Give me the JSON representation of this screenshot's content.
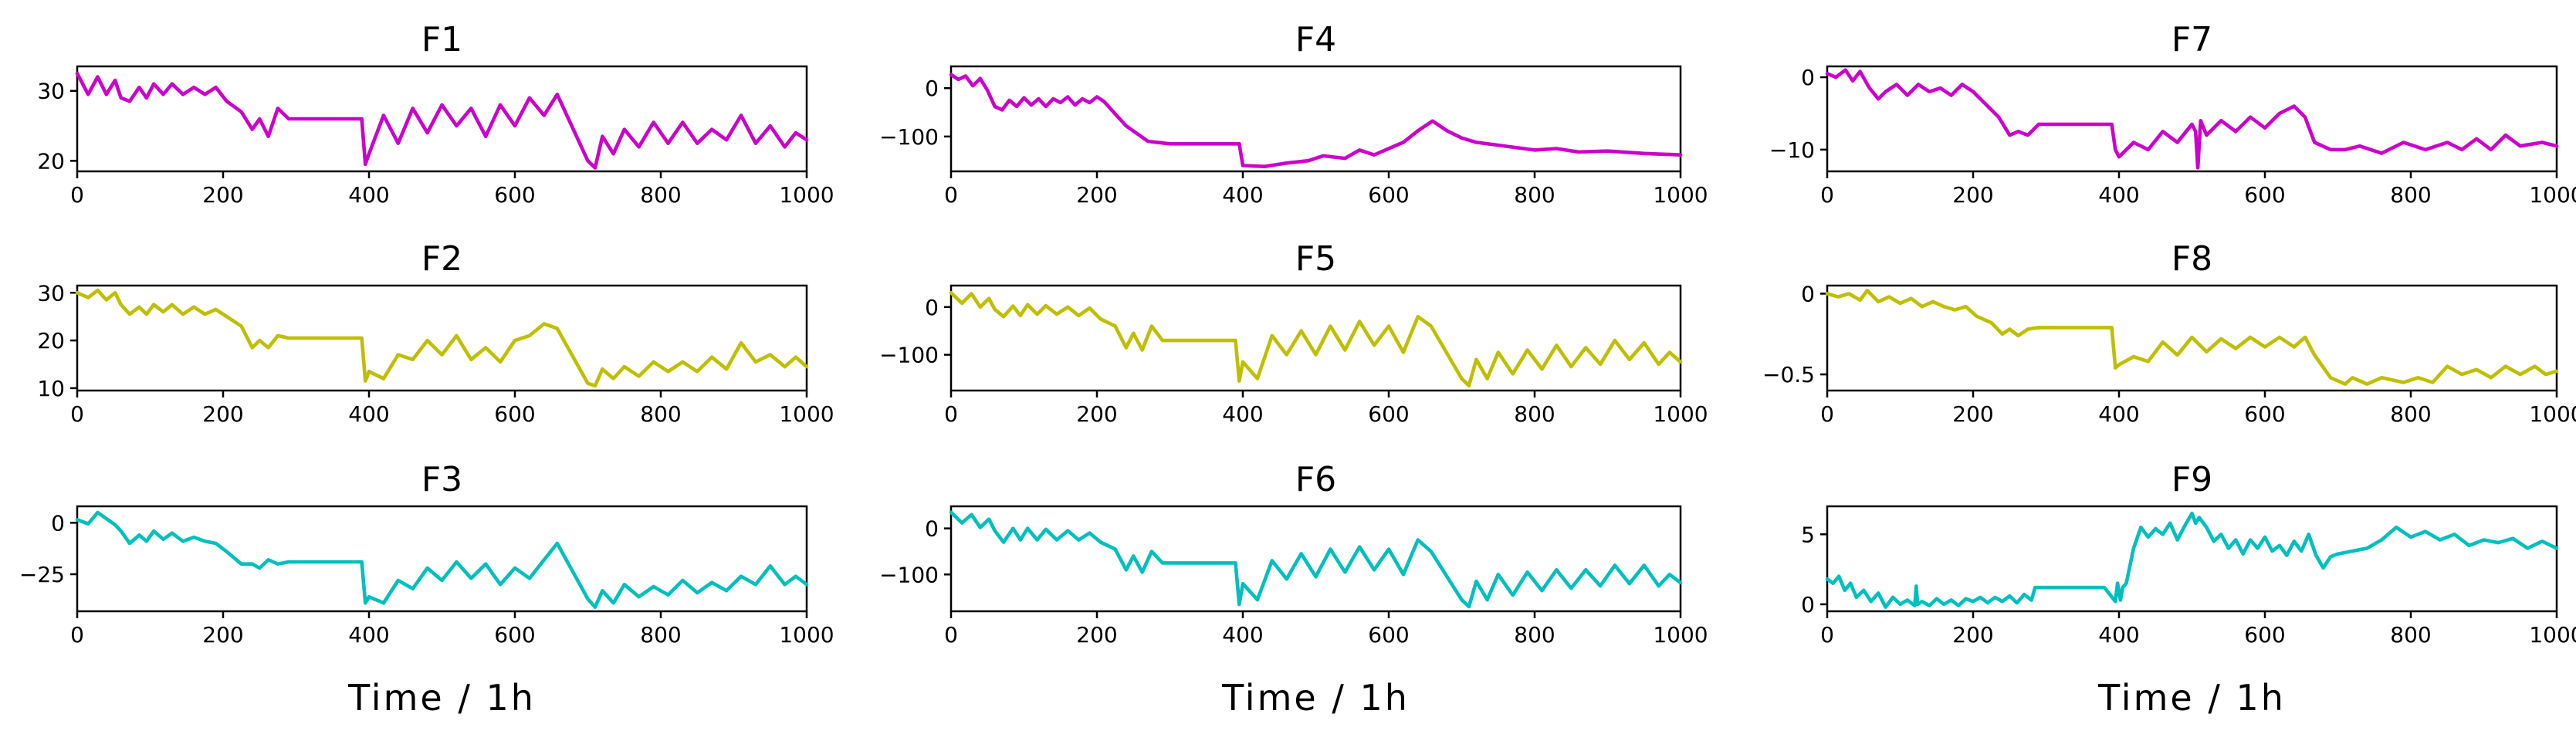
{
  "figure": {
    "xlabel": "Time / 1h"
  },
  "chart_data": [
    {
      "type": "line",
      "title": "F1",
      "color": "#cc00cc",
      "xlim": [
        0,
        1000
      ],
      "ylim": [
        18.5,
        33.5
      ],
      "xticks": [
        0,
        200,
        400,
        600,
        800,
        1000
      ],
      "yticks": [
        20,
        30
      ],
      "x": [
        0,
        15,
        28,
        40,
        52,
        60,
        72,
        85,
        95,
        105,
        118,
        130,
        145,
        160,
        175,
        190,
        205,
        225,
        240,
        250,
        262,
        275,
        290,
        300,
        330,
        390,
        395,
        400,
        420,
        440,
        460,
        480,
        500,
        520,
        540,
        560,
        580,
        600,
        620,
        640,
        658,
        700,
        710,
        720,
        735,
        750,
        770,
        790,
        810,
        830,
        850,
        870,
        890,
        910,
        930,
        950,
        970,
        985,
        1000
      ],
      "y": [
        32.5,
        29.5,
        32,
        29.5,
        31.5,
        29,
        28.5,
        30.5,
        29,
        31,
        29.5,
        31,
        29.5,
        30.5,
        29.5,
        30.5,
        28.5,
        27,
        24.5,
        26,
        23.5,
        27.5,
        26,
        26,
        26,
        26,
        19.5,
        21,
        26.5,
        22.5,
        27.5,
        24,
        28,
        25,
        27.5,
        23.5,
        28,
        25,
        29,
        26.5,
        29.5,
        20,
        19,
        23.5,
        21,
        24.5,
        22,
        25.5,
        22.5,
        25.5,
        22.5,
        24.5,
        23,
        26.5,
        22.5,
        25,
        22,
        24,
        23
      ]
    },
    {
      "type": "line",
      "title": "F2",
      "color": "#bfbf00",
      "xlim": [
        0,
        1000
      ],
      "ylim": [
        9.5,
        31.5
      ],
      "xticks": [
        0,
        200,
        400,
        600,
        800,
        1000
      ],
      "yticks": [
        10,
        20,
        30
      ],
      "x": [
        0,
        15,
        28,
        40,
        52,
        60,
        72,
        85,
        95,
        105,
        118,
        130,
        145,
        160,
        175,
        190,
        205,
        225,
        240,
        250,
        262,
        275,
        290,
        300,
        330,
        390,
        395,
        400,
        420,
        440,
        460,
        480,
        500,
        520,
        540,
        560,
        580,
        600,
        620,
        640,
        658,
        700,
        710,
        720,
        735,
        750,
        770,
        790,
        810,
        830,
        850,
        870,
        890,
        910,
        930,
        950,
        970,
        985,
        1000
      ],
      "y": [
        30,
        29,
        30.5,
        28.5,
        30,
        27.5,
        25.5,
        27,
        25.5,
        27.5,
        26,
        27.5,
        25.5,
        27,
        25.5,
        26.5,
        25,
        23,
        18.5,
        20,
        18.5,
        21,
        20.5,
        20.5,
        20.5,
        20.5,
        11.5,
        13.5,
        12,
        17,
        16,
        20,
        17,
        21,
        16,
        18.5,
        15.5,
        20,
        21,
        23.5,
        22.5,
        11,
        10.5,
        14,
        12,
        14.5,
        12.5,
        15.5,
        13.5,
        15.5,
        13.5,
        16.5,
        14,
        19.5,
        15.5,
        17,
        14.5,
        16.5,
        14.5
      ]
    },
    {
      "type": "line",
      "title": "F3",
      "color": "#00bfbf",
      "xlim": [
        0,
        1000
      ],
      "ylim": [
        -43,
        8
      ],
      "xticks": [
        0,
        200,
        400,
        600,
        800,
        1000
      ],
      "yticks": [
        -25,
        0
      ],
      "x": [
        0,
        15,
        28,
        40,
        52,
        60,
        72,
        85,
        95,
        105,
        118,
        130,
        145,
        160,
        175,
        190,
        205,
        225,
        240,
        250,
        262,
        275,
        290,
        300,
        330,
        390,
        395,
        400,
        420,
        440,
        460,
        480,
        500,
        520,
        540,
        560,
        580,
        600,
        620,
        640,
        658,
        700,
        710,
        720,
        735,
        750,
        770,
        790,
        810,
        830,
        850,
        870,
        890,
        910,
        930,
        950,
        970,
        985,
        1000
      ],
      "y": [
        1.5,
        -0.5,
        5,
        2,
        -1,
        -4,
        -10,
        -6,
        -9,
        -4,
        -8,
        -5,
        -9,
        -7,
        -9,
        -10,
        -14,
        -20,
        -20,
        -22,
        -18,
        -20,
        -19,
        -19,
        -19,
        -19,
        -39,
        -36,
        -39,
        -28,
        -32,
        -22,
        -28,
        -19,
        -27,
        -20,
        -30,
        -22,
        -27,
        -18,
        -10,
        -37,
        -41,
        -33,
        -39,
        -30,
        -36,
        -31,
        -35,
        -28,
        -34,
        -29,
        -33,
        -26,
        -30,
        -21,
        -30,
        -26,
        -30
      ]
    },
    {
      "type": "line",
      "title": "F4",
      "color": "#cc00cc",
      "xlim": [
        0,
        1000
      ],
      "ylim": [
        -172,
        45
      ],
      "xticks": [
        0,
        200,
        400,
        600,
        800,
        1000
      ],
      "yticks": [
        -100,
        0
      ],
      "x": [
        0,
        10,
        20,
        30,
        40,
        50,
        60,
        70,
        80,
        90,
        100,
        110,
        120,
        130,
        140,
        150,
        160,
        170,
        180,
        190,
        200,
        210,
        220,
        240,
        270,
        300,
        395,
        400,
        430,
        460,
        490,
        510,
        540,
        560,
        580,
        600,
        620,
        640,
        660,
        680,
        700,
        720,
        760,
        800,
        830,
        860,
        900,
        950,
        1000
      ],
      "y": [
        28,
        18,
        25,
        5,
        20,
        -5,
        -38,
        -45,
        -25,
        -38,
        -20,
        -35,
        -22,
        -38,
        -22,
        -30,
        -18,
        -35,
        -22,
        -30,
        -18,
        -28,
        -45,
        -78,
        -110,
        -115,
        -115,
        -160,
        -162,
        -155,
        -150,
        -140,
        -145,
        -128,
        -138,
        -125,
        -112,
        -88,
        -68,
        -88,
        -103,
        -112,
        -120,
        -128,
        -125,
        -132,
        -130,
        -135,
        -138
      ]
    },
    {
      "type": "line",
      "title": "F5",
      "color": "#bfbf00",
      "xlim": [
        0,
        1000
      ],
      "ylim": [
        -175,
        45
      ],
      "xticks": [
        0,
        200,
        400,
        600,
        800,
        1000
      ],
      "yticks": [
        -100,
        0
      ],
      "x": [
        0,
        15,
        28,
        40,
        52,
        60,
        72,
        85,
        95,
        105,
        118,
        130,
        145,
        160,
        175,
        190,
        205,
        225,
        240,
        250,
        262,
        275,
        290,
        300,
        330,
        390,
        395,
        400,
        420,
        440,
        460,
        480,
        500,
        520,
        540,
        560,
        580,
        600,
        620,
        640,
        658,
        700,
        710,
        720,
        735,
        750,
        770,
        790,
        810,
        830,
        850,
        870,
        890,
        910,
        930,
        950,
        970,
        985,
        1000
      ],
      "y": [
        30,
        8,
        28,
        0,
        18,
        -5,
        -20,
        2,
        -18,
        5,
        -15,
        3,
        -15,
        0,
        -18,
        -2,
        -25,
        -40,
        -85,
        -55,
        -90,
        -40,
        -70,
        -70,
        -70,
        -70,
        -155,
        -115,
        -150,
        -60,
        -100,
        -50,
        -100,
        -40,
        -90,
        -30,
        -80,
        -40,
        -95,
        -20,
        -40,
        -150,
        -165,
        -110,
        -150,
        -95,
        -140,
        -90,
        -130,
        -80,
        -125,
        -85,
        -120,
        -70,
        -110,
        -75,
        -120,
        -95,
        -115
      ]
    },
    {
      "type": "line",
      "title": "F6",
      "color": "#00bfbf",
      "xlim": [
        0,
        1000
      ],
      "ylim": [
        -180,
        48
      ],
      "xticks": [
        0,
        200,
        400,
        600,
        800,
        1000
      ],
      "yticks": [
        -100,
        0
      ],
      "x": [
        0,
        15,
        28,
        40,
        52,
        60,
        72,
        85,
        95,
        105,
        118,
        130,
        145,
        160,
        175,
        190,
        205,
        225,
        240,
        250,
        262,
        275,
        290,
        300,
        330,
        390,
        395,
        400,
        420,
        440,
        460,
        480,
        500,
        520,
        540,
        560,
        580,
        600,
        620,
        640,
        658,
        700,
        710,
        720,
        735,
        750,
        770,
        790,
        810,
        830,
        850,
        870,
        890,
        910,
        930,
        950,
        970,
        985,
        1000
      ],
      "y": [
        35,
        12,
        30,
        2,
        20,
        -5,
        -30,
        0,
        -25,
        0,
        -25,
        -2,
        -25,
        -5,
        -25,
        -10,
        -30,
        -45,
        -90,
        -60,
        -95,
        -50,
        -75,
        -75,
        -75,
        -75,
        -165,
        -120,
        -155,
        -70,
        -110,
        -55,
        -105,
        -45,
        -95,
        -40,
        -90,
        -45,
        -100,
        -25,
        -50,
        -155,
        -170,
        -115,
        -155,
        -100,
        -145,
        -95,
        -135,
        -90,
        -130,
        -90,
        -125,
        -80,
        -120,
        -80,
        -125,
        -100,
        -118
      ]
    },
    {
      "type": "line",
      "title": "F7",
      "color": "#cc00cc",
      "xlim": [
        0,
        1000
      ],
      "ylim": [
        -13,
        1.5
      ],
      "xticks": [
        0,
        200,
        400,
        600,
        800,
        1000
      ],
      "yticks": [
        -10,
        0
      ],
      "x": [
        0,
        12,
        25,
        35,
        45,
        58,
        70,
        80,
        95,
        110,
        125,
        140,
        155,
        170,
        185,
        200,
        215,
        235,
        250,
        262,
        275,
        290,
        300,
        330,
        390,
        395,
        400,
        420,
        440,
        460,
        480,
        500,
        505,
        508,
        512,
        520,
        540,
        560,
        580,
        600,
        620,
        640,
        655,
        668,
        690,
        710,
        730,
        760,
        790,
        820,
        850,
        870,
        890,
        910,
        930,
        950,
        980,
        1000
      ],
      "y": [
        0.5,
        0,
        1,
        -0.5,
        0.8,
        -1.5,
        -3,
        -2,
        -1,
        -2.5,
        -1,
        -2,
        -1.5,
        -2.5,
        -1,
        -2,
        -3.5,
        -5.5,
        -8,
        -7.5,
        -8,
        -6.5,
        -6.5,
        -6.5,
        -6.5,
        -10,
        -11,
        -9,
        -10,
        -7.5,
        -9,
        -6.5,
        -7.5,
        -12.5,
        -6,
        -8,
        -6,
        -7.5,
        -5.5,
        -7,
        -5,
        -4,
        -5.5,
        -9,
        -10,
        -10,
        -9.5,
        -10.5,
        -9,
        -10,
        -9,
        -10,
        -8.5,
        -10,
        -8,
        -9.5,
        -9,
        -9.5
      ]
    },
    {
      "type": "line",
      "title": "F8",
      "color": "#bfbf00",
      "xlim": [
        0,
        1000
      ],
      "ylim": [
        -0.6,
        0.05
      ],
      "xticks": [
        0,
        200,
        400,
        600,
        800,
        1000
      ],
      "yticks": [
        -0.5,
        0.0
      ],
      "x": [
        0,
        15,
        30,
        45,
        55,
        70,
        85,
        100,
        115,
        130,
        145,
        160,
        175,
        190,
        205,
        225,
        240,
        250,
        262,
        275,
        290,
        300,
        330,
        390,
        395,
        400,
        420,
        440,
        460,
        480,
        500,
        520,
        540,
        560,
        580,
        600,
        620,
        640,
        655,
        668,
        690,
        710,
        720,
        740,
        760,
        790,
        810,
        830,
        850,
        870,
        890,
        910,
        930,
        950,
        970,
        985,
        1000
      ],
      "y": [
        0,
        -0.02,
        0,
        -0.04,
        0.02,
        -0.05,
        -0.02,
        -0.06,
        -0.03,
        -0.08,
        -0.05,
        -0.08,
        -0.1,
        -0.08,
        -0.14,
        -0.18,
        -0.25,
        -0.22,
        -0.26,
        -0.22,
        -0.21,
        -0.21,
        -0.21,
        -0.21,
        -0.46,
        -0.44,
        -0.39,
        -0.42,
        -0.3,
        -0.38,
        -0.27,
        -0.36,
        -0.28,
        -0.34,
        -0.27,
        -0.33,
        -0.27,
        -0.33,
        -0.27,
        -0.38,
        -0.52,
        -0.56,
        -0.52,
        -0.56,
        -0.52,
        -0.55,
        -0.52,
        -0.55,
        -0.45,
        -0.5,
        -0.47,
        -0.52,
        -0.45,
        -0.5,
        -0.45,
        -0.5,
        -0.48
      ]
    },
    {
      "type": "line",
      "title": "F9",
      "color": "#00bfbf",
      "xlim": [
        0,
        1000
      ],
      "ylim": [
        -0.5,
        7
      ],
      "xticks": [
        0,
        200,
        400,
        600,
        800,
        1000
      ],
      "yticks": [
        0,
        5
      ],
      "x": [
        0,
        8,
        16,
        24,
        32,
        40,
        50,
        60,
        70,
        80,
        90,
        100,
        110,
        120,
        122,
        124,
        130,
        140,
        150,
        160,
        170,
        180,
        190,
        200,
        210,
        220,
        230,
        240,
        250,
        260,
        270,
        280,
        285,
        300,
        330,
        380,
        395,
        398,
        402,
        405,
        410,
        420,
        430,
        440,
        450,
        460,
        470,
        480,
        490,
        500,
        505,
        510,
        520,
        530,
        540,
        550,
        560,
        570,
        580,
        590,
        600,
        610,
        620,
        630,
        640,
        650,
        660,
        670,
        680,
        690,
        700,
        720,
        740,
        760,
        780,
        800,
        820,
        840,
        860,
        880,
        900,
        920,
        940,
        960,
        980,
        1000
      ],
      "y": [
        1.8,
        1.5,
        2,
        1,
        1.5,
        0.5,
        1,
        0.2,
        0.8,
        -0.2,
        0.5,
        0,
        0.3,
        -0.1,
        1.3,
        0,
        0.2,
        -0.1,
        0.4,
        0,
        0.3,
        -0.1,
        0.4,
        0.2,
        0.5,
        0.1,
        0.5,
        0.2,
        0.6,
        0.1,
        0.7,
        0.3,
        1.2,
        1.2,
        1.2,
        1.2,
        0.2,
        1.5,
        0.3,
        1.2,
        1.5,
        4,
        5.5,
        4.8,
        5.4,
        5,
        5.8,
        4.6,
        5.6,
        6.5,
        5.8,
        6.2,
        5.5,
        4.5,
        5,
        4,
        4.6,
        3.6,
        4.6,
        4,
        4.8,
        3.8,
        4.2,
        3.5,
        4.5,
        3.8,
        5,
        3.5,
        2.6,
        3.4,
        3.6,
        3.8,
        4,
        4.6,
        5.5,
        4.8,
        5.2,
        4.6,
        5,
        4.2,
        4.6,
        4.4,
        4.7,
        4,
        4.5,
        4
      ]
    }
  ]
}
